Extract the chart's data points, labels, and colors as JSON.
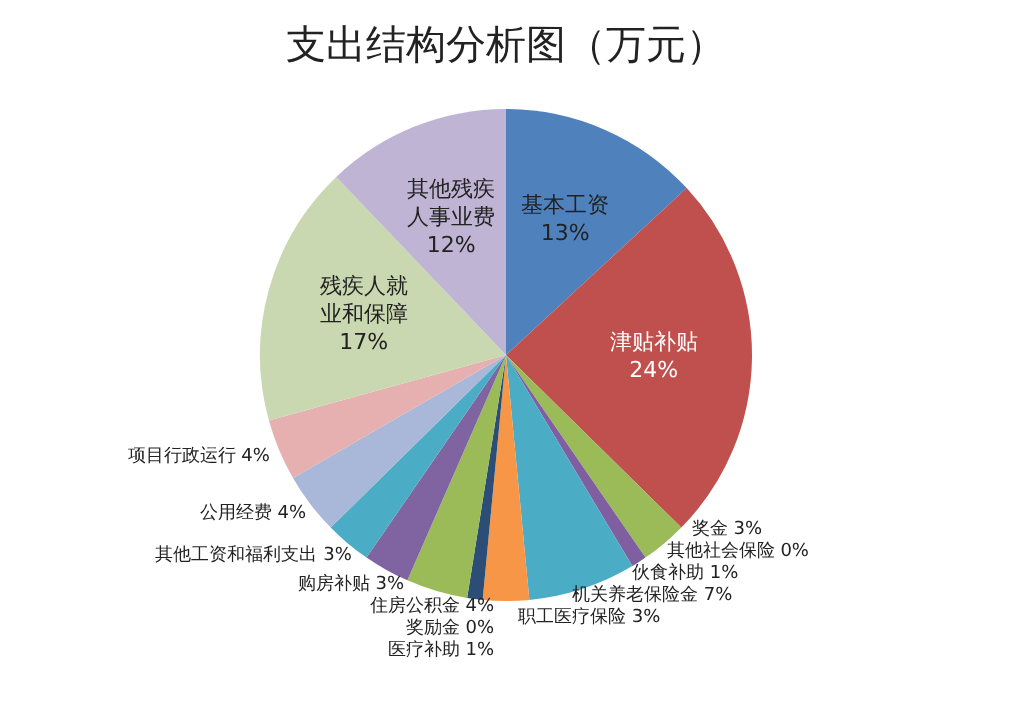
{
  "chart_data": {
    "type": "pie",
    "title": "支出结构分析图（万元）",
    "categories": [
      "基本工资",
      "津贴补贴",
      "奖金",
      "其他社会保险",
      "伙食补助",
      "机关养老保险金",
      "职工医疗保险",
      "医疗补助",
      "奖励金",
      "住房公积金",
      "购房补贴",
      "其他工资和福利支出",
      "公用经费",
      "项目行政运行",
      "残疾人就业和保障",
      "其他残疾人事业费"
    ],
    "values": [
      13,
      24,
      3,
      0,
      1,
      7,
      3,
      1,
      0,
      4,
      3,
      3,
      4,
      4,
      17,
      12
    ],
    "colors": [
      "#4f81bd",
      "#c0504d",
      "#9bbb59",
      "#8064a2",
      "#7f5f9f",
      "#4bacc6",
      "#f79646",
      "#2c4d75",
      "#c0504d",
      "#9bbb59",
      "#8064a2",
      "#4bacc6",
      "#a9b8d8",
      "#e6b0b0",
      "#c9d8b0",
      "#bfb4d4"
    ],
    "value_labels": [
      "13%",
      "24%",
      "3%",
      "0%",
      "1%",
      "7%",
      "3%",
      "1%",
      "0%",
      "4%",
      "3%",
      "3%",
      "4%",
      "4%",
      "17%",
      "12%"
    ],
    "legend": false
  }
}
